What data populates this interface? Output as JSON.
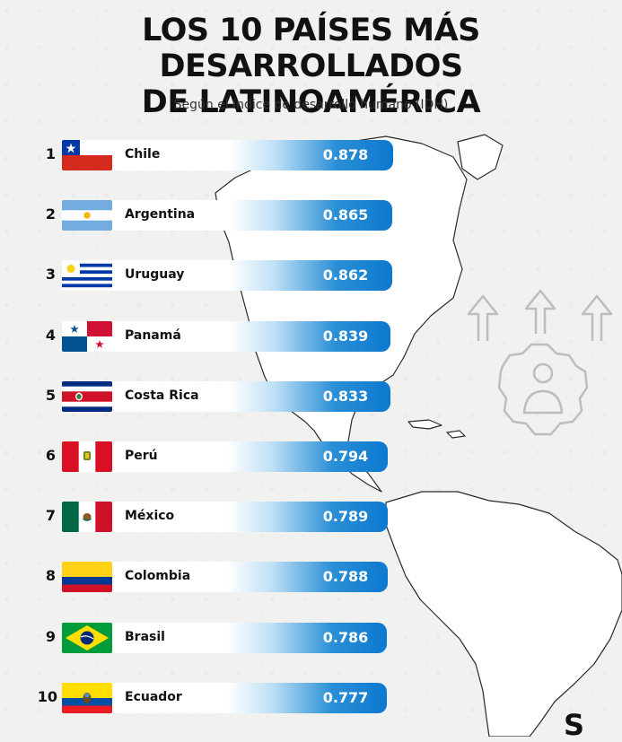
{
  "header": {
    "title_line1": "LOS 10 PAÍSES MÁS DESARROLLADOS",
    "title_line2": "DE LATINOAMÉRICA",
    "subtitle": "Según el índice de desarrollo humano (IDH)"
  },
  "chart_data": {
    "type": "bar",
    "title": "LOS 10 PAÍSES MÁS DESARROLLADOS DE LATINOAMÉRICA",
    "subtitle": "Según el índice de desarrollo humano (IDH)",
    "xlabel": "",
    "ylabel": "",
    "grid": false,
    "legend": "none",
    "orientation": "horizontal",
    "categories": [
      "Chile",
      "Argentina",
      "Uruguay",
      "Panamá",
      "Costa Rica",
      "Perú",
      "México",
      "Colombia",
      "Brasil",
      "Ecuador"
    ],
    "values": [
      0.878,
      0.865,
      0.862,
      0.839,
      0.833,
      0.794,
      0.789,
      0.788,
      0.786,
      0.777
    ],
    "value_labels": [
      "0.878",
      "0.865",
      "0.862",
      "0.839",
      "0.833",
      "0.794",
      "0.789",
      "0.788",
      "0.786",
      "0.777"
    ],
    "ranks": [
      "1",
      "2",
      "3",
      "4",
      "5",
      "6",
      "7",
      "8",
      "9",
      "10"
    ],
    "flag_icons": [
      "flag-chile-icon",
      "flag-argentina-icon",
      "flag-uruguay-icon",
      "flag-panama-icon",
      "flag-costa-rica-icon",
      "flag-peru-icon",
      "flag-mexico-icon",
      "flag-colombia-icon",
      "flag-brasil-icon",
      "flag-ecuador-icon"
    ],
    "bar_gradient": [
      "#ffffff",
      "#2a8fd6",
      "#0c78cf"
    ]
  },
  "logo": {
    "text": "S"
  },
  "decor_icons": [
    "americas-map-icon",
    "development-gear-person-icon"
  ]
}
